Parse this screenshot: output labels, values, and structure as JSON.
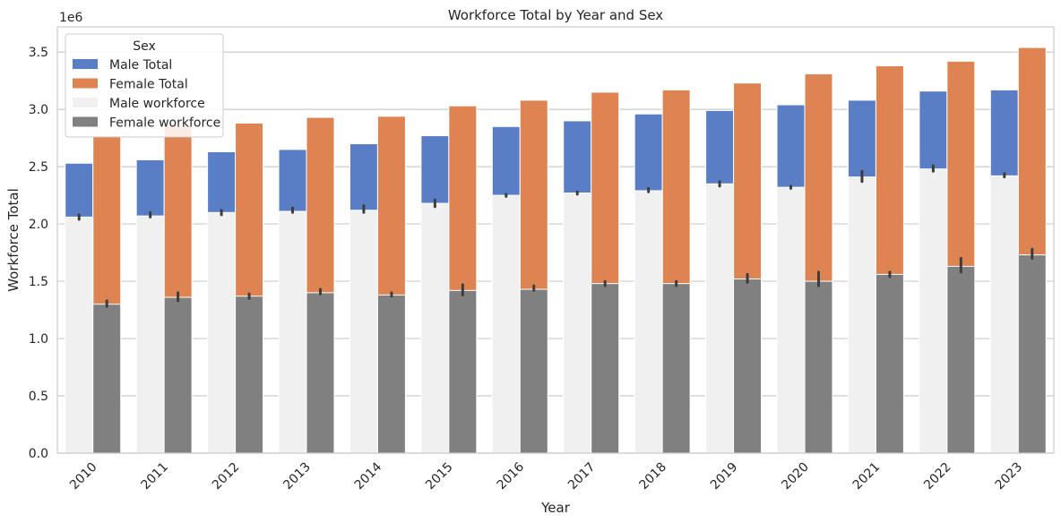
{
  "chart_data": {
    "type": "bar",
    "title": "Workforce Total by Year and Sex",
    "xlabel": "Year",
    "ylabel": "Workforce Total",
    "y_offset_label": "1e6",
    "ylim": [
      0,
      3.72
    ],
    "yticks": [
      "0.0",
      "0.5",
      "1.0",
      "1.5",
      "2.0",
      "2.5",
      "3.0",
      "3.5"
    ],
    "categories": [
      "2010",
      "2011",
      "2012",
      "2013",
      "2014",
      "2015",
      "2016",
      "2017",
      "2018",
      "2019",
      "2020",
      "2021",
      "2022",
      "2023"
    ],
    "legend": {
      "title": "Sex",
      "position": "upper left"
    },
    "grid": {
      "y": true,
      "x": false
    },
    "series": [
      {
        "name": "Male Total",
        "color": "#5a7ec6",
        "slot": "left",
        "values": [
          2.53,
          2.56,
          2.63,
          2.65,
          2.7,
          2.77,
          2.85,
          2.9,
          2.96,
          2.99,
          3.04,
          3.08,
          3.16,
          3.17
        ]
      },
      {
        "name": "Female Total",
        "color": "#dd8452",
        "slot": "right",
        "values": [
          2.77,
          2.86,
          2.88,
          2.93,
          2.94,
          3.03,
          3.08,
          3.15,
          3.17,
          3.23,
          3.31,
          3.38,
          3.42,
          3.54
        ]
      },
      {
        "name": "Male workforce",
        "color": "#f0f0f0",
        "slot": "left",
        "values": [
          2.06,
          2.07,
          2.1,
          2.11,
          2.12,
          2.18,
          2.25,
          2.27,
          2.29,
          2.35,
          2.32,
          2.41,
          2.48,
          2.42
        ],
        "error": [
          [
            2.04,
            2.08
          ],
          [
            2.06,
            2.1
          ],
          [
            2.08,
            2.12
          ],
          [
            2.1,
            2.14
          ],
          [
            2.1,
            2.16
          ],
          [
            2.15,
            2.21
          ],
          [
            2.24,
            2.26
          ],
          [
            2.26,
            2.28
          ],
          [
            2.28,
            2.31
          ],
          [
            2.33,
            2.37
          ],
          [
            2.31,
            2.33
          ],
          [
            2.37,
            2.46
          ],
          [
            2.46,
            2.51
          ],
          [
            2.41,
            2.44
          ]
        ]
      },
      {
        "name": "Female workforce",
        "color": "#808080",
        "slot": "right",
        "values": [
          1.3,
          1.36,
          1.37,
          1.4,
          1.38,
          1.42,
          1.43,
          1.48,
          1.48,
          1.52,
          1.5,
          1.56,
          1.63,
          1.73
        ],
        "error": [
          [
            1.28,
            1.33
          ],
          [
            1.33,
            1.4
          ],
          [
            1.35,
            1.39
          ],
          [
            1.39,
            1.43
          ],
          [
            1.37,
            1.4
          ],
          [
            1.38,
            1.47
          ],
          [
            1.42,
            1.46
          ],
          [
            1.46,
            1.5
          ],
          [
            1.46,
            1.5
          ],
          [
            1.49,
            1.56
          ],
          [
            1.46,
            1.58
          ],
          [
            1.54,
            1.58
          ],
          [
            1.58,
            1.7
          ],
          [
            1.7,
            1.78
          ]
        ]
      }
    ]
  }
}
